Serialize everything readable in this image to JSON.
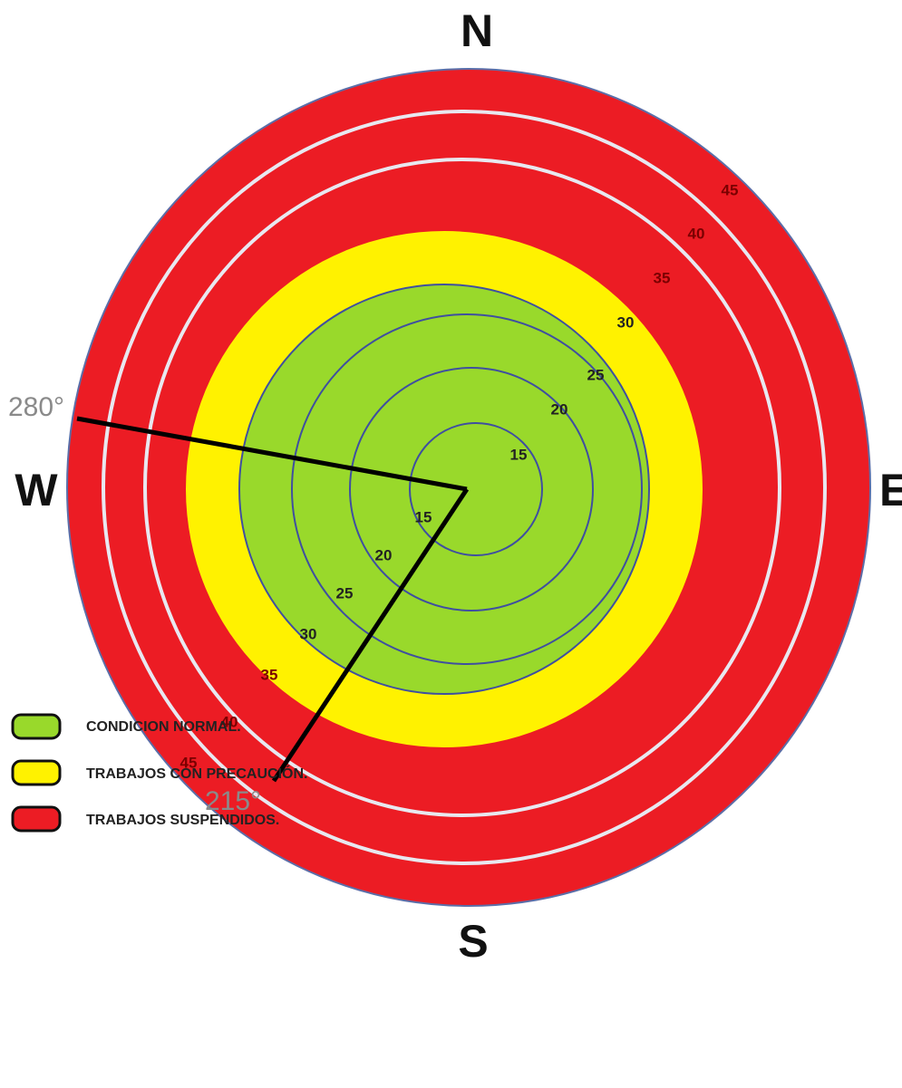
{
  "compass": {
    "north": "N",
    "south": "S",
    "east": "E",
    "west": "W"
  },
  "angles": [
    "280°",
    "215°"
  ],
  "ring_labels_ne": [
    "15",
    "20",
    "25",
    "30",
    "35",
    "40",
    "45"
  ],
  "ring_labels_sw": [
    "15",
    "20",
    "25",
    "30",
    "35",
    "40",
    "45"
  ],
  "legend": [
    "CONDICION NORMAL.",
    "TRABAJOS CON PRECAUCIÓN.",
    "TRABAJOS SUSPENDIDOS."
  ]
}
